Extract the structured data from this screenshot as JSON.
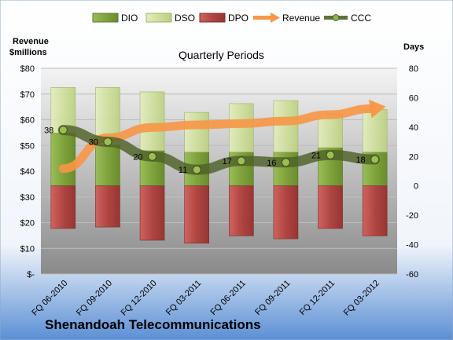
{
  "chart_data": {
    "type": "bar",
    "title": "Quarterly Periods",
    "company": "Shenandoah Telecommunications",
    "left_axis": {
      "title_line1": "Revenue",
      "title_line2": "$millions",
      "ylim": [
        0,
        80
      ],
      "ticks": [
        0,
        10,
        20,
        30,
        40,
        50,
        60,
        70,
        80
      ],
      "tick_labels": [
        "$-",
        "$10",
        "$20",
        "$30",
        "$40",
        "$50",
        "$60",
        "$70",
        "$80"
      ]
    },
    "right_axis": {
      "title": "Days",
      "ylim": [
        -60,
        80
      ],
      "ticks": [
        -60,
        -40,
        -20,
        0,
        20,
        40,
        60,
        80
      ],
      "tick_labels": [
        "-60",
        "-40",
        "-20",
        "0",
        "20",
        "40",
        "60",
        "80"
      ]
    },
    "categories": [
      "FQ 06-2010",
      "FQ 09-2010",
      "FQ 12-2010",
      "FQ 03-2011",
      "FQ 06-2011",
      "FQ 09-2011",
      "FQ 12-2011",
      "FQ 03-2012"
    ],
    "series": [
      {
        "name": "DIO",
        "axis": "right",
        "kind": "stacked-bar",
        "color": "#8cb04a",
        "values": [
          36,
          28,
          24,
          23,
          23,
          23,
          26,
          23
        ]
      },
      {
        "name": "DSO",
        "axis": "right",
        "kind": "stacked-bar",
        "color": "#d6e4a8",
        "values": [
          31,
          39,
          40,
          27,
          33,
          35,
          23,
          29
        ]
      },
      {
        "name": "DPO",
        "axis": "right",
        "kind": "negative-bar",
        "color": "#c0504d",
        "values": [
          -29,
          -28,
          -37,
          -39,
          -34,
          -36,
          -29,
          -34
        ]
      },
      {
        "name": "Revenue",
        "axis": "left",
        "kind": "arrow-line",
        "color": "#f79646",
        "values": [
          41,
          53,
          57,
          58,
          58.5,
          59.5,
          62,
          64.5
        ]
      },
      {
        "name": "CCC",
        "axis": "right",
        "kind": "line",
        "color": "#4f6228",
        "values": [
          38,
          30,
          20,
          11,
          17,
          16,
          21,
          18
        ]
      }
    ],
    "data_labels": [
      "38",
      "30",
      "20",
      "11",
      "17",
      "16",
      "21",
      "18"
    ],
    "legend": [
      "DIO",
      "DSO",
      "DPO",
      "Revenue",
      "CCC"
    ],
    "legend_position": "top",
    "grid": true
  }
}
